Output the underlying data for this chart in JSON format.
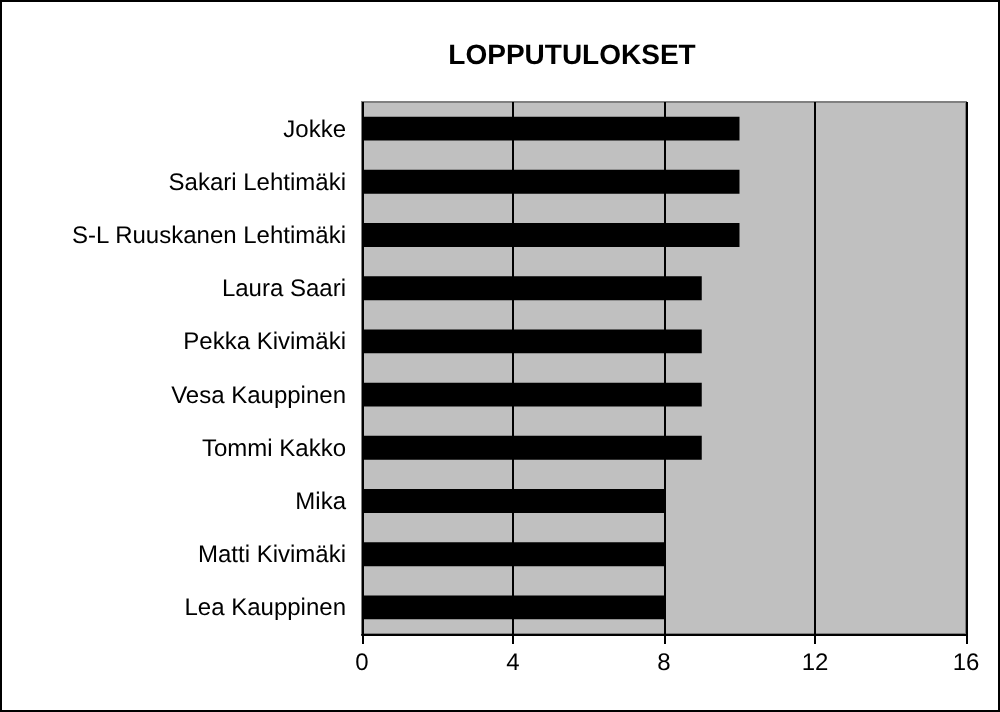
{
  "chart_data": {
    "type": "bar",
    "title": "LOPPUTULOKSET",
    "orientation": "horizontal",
    "categories": [
      "Jokke",
      "Sakari Lehtimäki",
      "S-L Ruuskanen Lehtimäki",
      "Laura Saari",
      "Pekka Kivimäki",
      "Vesa Kauppinen",
      "Tommi Kakko",
      "Mika",
      "Matti Kivimäki",
      "Lea Kauppinen"
    ],
    "values": [
      10,
      10,
      10,
      9,
      9,
      9,
      9,
      8,
      8,
      8
    ],
    "color": "#000000",
    "xlim": [
      0,
      16
    ],
    "xticks": [
      0,
      4,
      8,
      12,
      16
    ],
    "grid": "x"
  }
}
